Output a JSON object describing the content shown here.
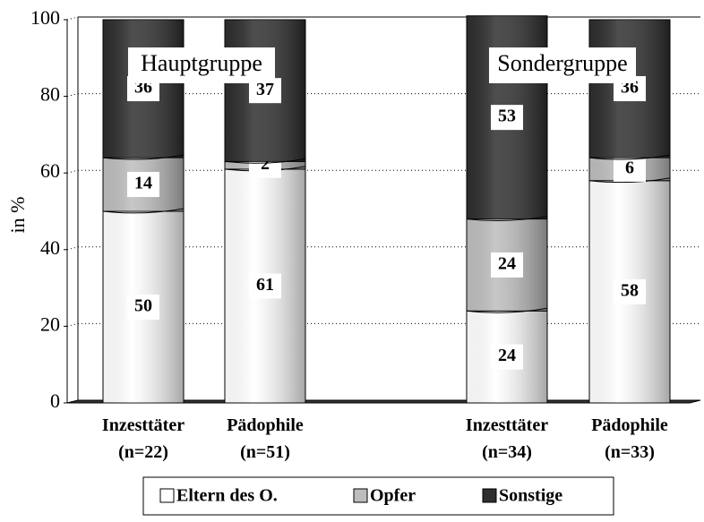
{
  "chart_data": {
    "type": "bar",
    "stacked": true,
    "y_label": "in %",
    "categories": [
      "Inzesttäter (n=22)",
      "Pädophile (n=51)",
      "Inzesttäter (n=34)",
      "Pädophile (n=33)"
    ],
    "annotations": [
      "Hauptgruppe",
      "Sondergruppe"
    ],
    "series": [
      {
        "name": "Eltern des O.",
        "color": "#ffffff",
        "values": [
          50,
          61,
          24,
          58
        ]
      },
      {
        "name": "Opfer",
        "color": "#bdbdbd",
        "values": [
          14,
          2,
          24,
          6
        ]
      },
      {
        "name": "Sonstige",
        "color": "#2e2e2e",
        "values": [
          36,
          37,
          53,
          36
        ]
      }
    ],
    "ylim": [
      0,
      100
    ],
    "yticks": [
      0,
      20,
      40,
      60,
      80,
      100
    ],
    "grid": true,
    "legend": "bottom"
  }
}
